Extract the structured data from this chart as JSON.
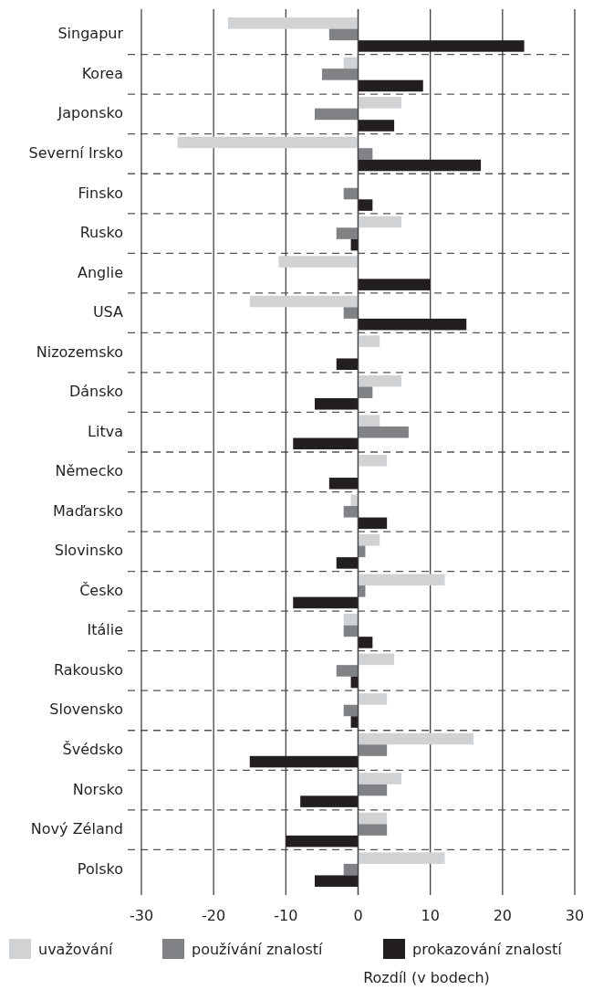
{
  "chart_data": {
    "type": "bar",
    "orientation": "horizontal",
    "xlabel": "Rozdíl (v bodech)",
    "categories": [
      "Singapur",
      "Korea",
      "Japonsko",
      "Severní Irsko",
      "Finsko",
      "Rusko",
      "Anglie",
      "USA",
      "Nizozemsko",
      "Dánsko",
      "Litva",
      "Německo",
      "Maďarsko",
      "Slovinsko",
      "Česko",
      "Itálie",
      "Rakousko",
      "Slovensko",
      "Švédsko",
      "Norsko",
      "Nový Zéland",
      "Polsko"
    ],
    "series": [
      {
        "name": "uvažování",
        "color": "#d1d2d4",
        "values": [
          -18,
          -2,
          6,
          -25,
          null,
          6,
          -11,
          -15,
          3,
          6,
          3,
          4,
          -1,
          3,
          12,
          -2,
          5,
          4,
          16,
          6,
          4,
          12
        ]
      },
      {
        "name": "používání znalostí",
        "color": "#808285",
        "values": [
          -4,
          -5,
          -6,
          2,
          -2,
          -3,
          null,
          -2,
          null,
          2,
          7,
          null,
          -2,
          1,
          1,
          -2,
          -3,
          -2,
          4,
          4,
          4,
          -2
        ]
      },
      {
        "name": "prokazování znalostí",
        "color": "#231f20",
        "values": [
          23,
          9,
          5,
          17,
          2,
          -1,
          10,
          15,
          -3,
          -6,
          -9,
          -4,
          4,
          -3,
          -9,
          2,
          -1,
          -1,
          -15,
          -8,
          -10,
          -6
        ]
      }
    ],
    "xlim": [
      -30,
      30
    ],
    "xticks": [
      -30,
      -20,
      -10,
      0,
      10,
      20,
      30
    ],
    "grid": true,
    "legend": "bottom"
  }
}
